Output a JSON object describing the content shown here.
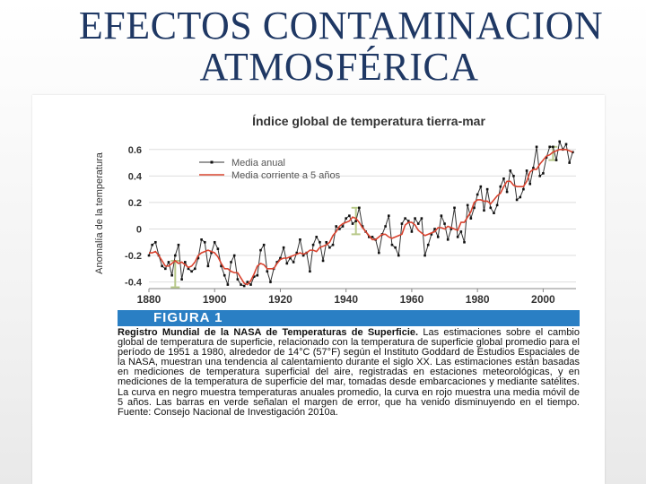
{
  "slide": {
    "title_line1": "EFECTOS CONTAMINACION",
    "title_line2": "ATMOSFÉRICA"
  },
  "figure": {
    "label": "FIGURA 1",
    "caption_bold": "Registro Mundial de la NASA de Temperaturas de Superficie.",
    "caption_text": " Las estimaciones sobre el cambio global de temperatura de superficie, relacionado con la temperatura de superficie global promedio para el período de 1951 a 1980, alrededor de 14°C (57°F) según el Instituto Goddard de Estudios Espaciales de la NASA, muestran una tendencia al calentamiento durante el siglo XX. Las estimaciones están basadas en mediciones de temperatura superficial del aire, registradas en estaciones meteorológicas, y en mediciones de la temperatura de superficie del mar, tomadas desde embarcaciones y mediante satélites. La curva en negro muestra temperaturas anuales promedio, la curva en rojo muestra una media móvil de 5 años. Las barras en verde señalan el margen de error, que ha venido disminuyendo en el tiempo. Fuente: Consejo Nacional de Investigación 2010a."
  },
  "colors": {
    "annual": "#333333",
    "running": "#d9432f",
    "error_bar": "#b8c98a",
    "grid": "#dddddd",
    "axis_text": "#333333"
  },
  "chart_data": {
    "type": "line",
    "title": "Índice global de temperatura tierra-mar",
    "xlabel": "",
    "ylabel": "Anomalía de la temperatura",
    "xlim": [
      1880,
      2010
    ],
    "ylim": [
      -0.45,
      0.7
    ],
    "xticks": [
      1880,
      1900,
      1920,
      1940,
      1960,
      1980,
      2000
    ],
    "yticks": [
      -0.4,
      -0.2,
      0,
      0.2,
      0.4,
      0.6
    ],
    "ytick_labels": [
      "-0.4",
      "-0.2",
      "0",
      "0.2",
      "0.4",
      "0.6"
    ],
    "legend": {
      "position": "top-left",
      "entries": [
        "Media anual",
        "Media corriente a 5 años"
      ]
    },
    "x": [
      1880,
      1881,
      1882,
      1883,
      1884,
      1885,
      1886,
      1887,
      1888,
      1889,
      1890,
      1891,
      1892,
      1893,
      1894,
      1895,
      1896,
      1897,
      1898,
      1899,
      1900,
      1901,
      1902,
      1903,
      1904,
      1905,
      1906,
      1907,
      1908,
      1909,
      1910,
      1911,
      1912,
      1913,
      1914,
      1915,
      1916,
      1917,
      1918,
      1919,
      1920,
      1921,
      1922,
      1923,
      1924,
      1925,
      1926,
      1927,
      1928,
      1929,
      1930,
      1931,
      1932,
      1933,
      1934,
      1935,
      1936,
      1937,
      1938,
      1939,
      1940,
      1941,
      1942,
      1943,
      1944,
      1945,
      1946,
      1947,
      1948,
      1949,
      1950,
      1951,
      1952,
      1953,
      1954,
      1955,
      1956,
      1957,
      1958,
      1959,
      1960,
      1961,
      1962,
      1963,
      1964,
      1965,
      1966,
      1967,
      1968,
      1969,
      1970,
      1971,
      1972,
      1973,
      1974,
      1975,
      1976,
      1977,
      1978,
      1979,
      1980,
      1981,
      1982,
      1983,
      1984,
      1985,
      1986,
      1987,
      1988,
      1989,
      1990,
      1991,
      1992,
      1993,
      1994,
      1995,
      1996,
      1997,
      1998,
      1999,
      2000,
      2001,
      2002,
      2003,
      2004,
      2005,
      2006,
      2007,
      2008,
      2009
    ],
    "series": [
      {
        "name": "Media anual",
        "values": [
          -0.2,
          -0.12,
          -0.1,
          -0.2,
          -0.28,
          -0.3,
          -0.25,
          -0.35,
          -0.2,
          -0.12,
          -0.38,
          -0.25,
          -0.3,
          -0.32,
          -0.3,
          -0.22,
          -0.08,
          -0.1,
          -0.28,
          -0.18,
          -0.1,
          -0.15,
          -0.28,
          -0.35,
          -0.42,
          -0.25,
          -0.2,
          -0.38,
          -0.42,
          -0.43,
          -0.4,
          -0.42,
          -0.36,
          -0.35,
          -0.16,
          -0.12,
          -0.32,
          -0.4,
          -0.3,
          -0.25,
          -0.22,
          -0.14,
          -0.26,
          -0.22,
          -0.25,
          -0.18,
          -0.08,
          -0.2,
          -0.18,
          -0.32,
          -0.12,
          -0.06,
          -0.1,
          -0.24,
          -0.1,
          -0.14,
          -0.12,
          0.02,
          0.0,
          0.02,
          0.08,
          0.1,
          0.04,
          0.06,
          0.16,
          0.02,
          -0.02,
          -0.06,
          -0.06,
          -0.08,
          -0.18,
          -0.04,
          0.02,
          0.1,
          -0.12,
          -0.14,
          -0.2,
          0.04,
          0.08,
          0.06,
          -0.02,
          0.08,
          0.04,
          0.08,
          -0.2,
          -0.12,
          -0.04,
          0.0,
          -0.06,
          0.1,
          0.04,
          -0.08,
          0.0,
          0.16,
          -0.06,
          -0.02,
          -0.1,
          0.18,
          0.08,
          0.16,
          0.26,
          0.32,
          0.14,
          0.3,
          0.16,
          0.12,
          0.18,
          0.32,
          0.38,
          0.28,
          0.44,
          0.4,
          0.22,
          0.24,
          0.3,
          0.44,
          0.34,
          0.46,
          0.62,
          0.4,
          0.42,
          0.54,
          0.62,
          0.62,
          0.52,
          0.66,
          0.6,
          0.64,
          0.5,
          0.58
        ]
      },
      {
        "name": "Media corriente a 5 años",
        "values": [
          -0.18,
          -0.18,
          -0.17,
          -0.2,
          -0.24,
          -0.28,
          -0.28,
          -0.26,
          -0.24,
          -0.26,
          -0.25,
          -0.27,
          -0.29,
          -0.28,
          -0.25,
          -0.2,
          -0.18,
          -0.17,
          -0.16,
          -0.17,
          -0.18,
          -0.21,
          -0.26,
          -0.3,
          -0.3,
          -0.32,
          -0.33,
          -0.33,
          -0.37,
          -0.41,
          -0.42,
          -0.39,
          -0.34,
          -0.28,
          -0.26,
          -0.27,
          -0.3,
          -0.3,
          -0.3,
          -0.26,
          -0.23,
          -0.22,
          -0.22,
          -0.21,
          -0.2,
          -0.19,
          -0.18,
          -0.19,
          -0.18,
          -0.16,
          -0.16,
          -0.17,
          -0.14,
          -0.13,
          -0.12,
          -0.1,
          -0.05,
          -0.02,
          0.02,
          0.04,
          0.05,
          0.06,
          0.09,
          0.08,
          0.05,
          0.01,
          -0.02,
          -0.05,
          -0.08,
          -0.08,
          -0.06,
          -0.04,
          -0.04,
          -0.06,
          -0.07,
          -0.06,
          -0.05,
          -0.04,
          0.03,
          0.05,
          0.05,
          0.03,
          -0.01,
          -0.03,
          -0.05,
          -0.04,
          -0.03,
          -0.02,
          0.01,
          0.01,
          0.0,
          0.02,
          0.01,
          0.0,
          -0.01,
          0.05,
          0.05,
          0.09,
          0.13,
          0.2,
          0.22,
          0.22,
          0.21,
          0.21,
          0.19,
          0.22,
          0.25,
          0.27,
          0.32,
          0.36,
          0.36,
          0.33,
          0.32,
          0.32,
          0.32,
          0.36,
          0.43,
          0.45,
          0.45,
          0.49,
          0.52,
          0.55,
          0.56,
          0.58,
          0.59,
          0.6,
          0.6,
          0.6,
          0.59,
          0.58
        ]
      }
    ],
    "error_bars": [
      {
        "x": 1888,
        "low": -0.44,
        "high": -0.24
      },
      {
        "x": 1943,
        "low": -0.04,
        "high": 0.16
      },
      {
        "x": 2003,
        "low": 0.52,
        "high": 0.62
      }
    ]
  }
}
